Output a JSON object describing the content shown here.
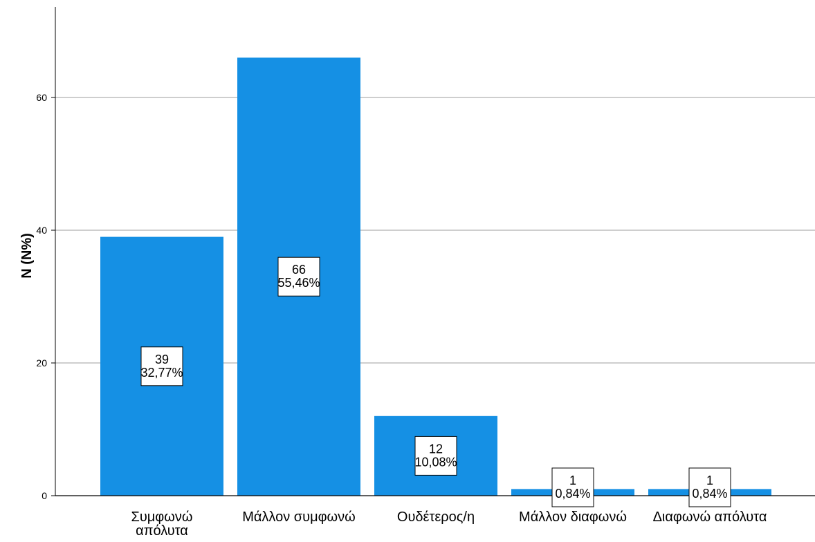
{
  "chart_data": {
    "type": "bar",
    "title": "",
    "xlabel": "",
    "ylabel": "N (N%)",
    "categories": [
      [
        "Συμφωνώ",
        "απόλυτα"
      ],
      [
        "Μάλλον συμφωνώ"
      ],
      [
        "Ουδέτερος/η"
      ],
      [
        "Μάλλον διαφωνώ"
      ],
      [
        "Διαφωνώ απόλυτα"
      ]
    ],
    "values": [
      39,
      66,
      12,
      1,
      1
    ],
    "data_labels": [
      [
        "39",
        "32,77%"
      ],
      [
        "66",
        "55,46%"
      ],
      [
        "12",
        "10,08%"
      ],
      [
        "1",
        "0,84%"
      ],
      [
        "1",
        "0,84%"
      ]
    ],
    "yticks": [
      0,
      20,
      40,
      60
    ],
    "ylim": [
      0,
      74
    ],
    "grid": true,
    "bar_color": "#1590e4"
  }
}
